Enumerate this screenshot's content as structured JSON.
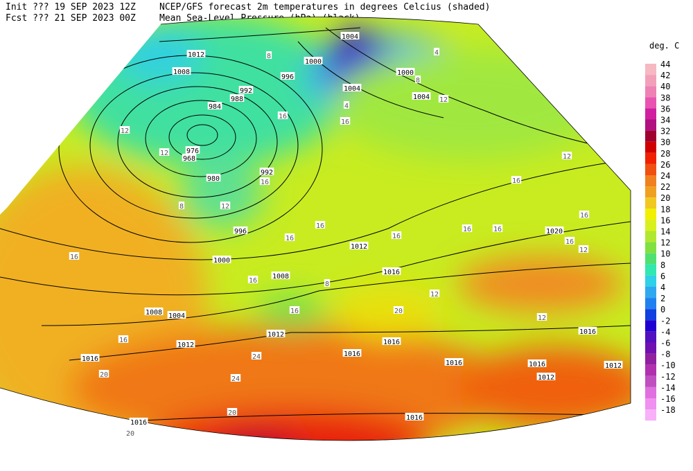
{
  "header": {
    "init": "Init  ??? 19 SEP 2023 12Z",
    "fcst": "Fcst ??? 21 SEP 2023 00Z",
    "title": "NCEP/GFS forecast 2m temperatures in degrees Celcius (shaded)",
    "subtitle": "Mean Sea-Level Pressure (hPa) (black)."
  },
  "legend": {
    "title": "deg. C",
    "ticks": [
      {
        "value": 44,
        "color": "#f6b8c2"
      },
      {
        "value": 42,
        "color": "#f2a0ba"
      },
      {
        "value": 40,
        "color": "#ee82b4"
      },
      {
        "value": 38,
        "color": "#e854b0"
      },
      {
        "value": 36,
        "color": "#d020a0"
      },
      {
        "value": 34,
        "color": "#b01080"
      },
      {
        "value": 32,
        "color": "#a00030"
      },
      {
        "value": 30,
        "color": "#d00000"
      },
      {
        "value": 28,
        "color": "#f02000"
      },
      {
        "value": 26,
        "color": "#f05010"
      },
      {
        "value": 24,
        "color": "#f08020"
      },
      {
        "value": 22,
        "color": "#f0a020"
      },
      {
        "value": 20,
        "color": "#f0c820"
      },
      {
        "value": 18,
        "color": "#f0f000"
      },
      {
        "value": 16,
        "color": "#d8f020"
      },
      {
        "value": 14,
        "color": "#b0e830"
      },
      {
        "value": 12,
        "color": "#80e040"
      },
      {
        "value": 10,
        "color": "#50e070"
      },
      {
        "value": 8,
        "color": "#30e8b0"
      },
      {
        "value": 6,
        "color": "#30d0e8"
      },
      {
        "value": 4,
        "color": "#30a8f0"
      },
      {
        "value": 2,
        "color": "#2080f0"
      },
      {
        "value": 0,
        "color": "#1040e0"
      },
      {
        "value": -2,
        "color": "#2000d0"
      },
      {
        "value": -4,
        "color": "#5010c0"
      },
      {
        "value": -6,
        "color": "#7010b0"
      },
      {
        "value": -8,
        "color": "#9020a0"
      },
      {
        "value": -10,
        "color": "#b030b0"
      },
      {
        "value": -12,
        "color": "#c050c0"
      },
      {
        "value": -14,
        "color": "#e070e0"
      },
      {
        "value": -16,
        "color": "#f090f0"
      },
      {
        "value": -18,
        "color": "#f8b0f8"
      }
    ]
  },
  "map": {
    "pressure_labels": [
      1004,
      1012,
      1008,
      1000,
      996,
      992,
      988,
      984,
      976,
      968,
      980,
      992,
      996,
      1000,
      1008,
      1012,
      1016,
      1020,
      1000,
      1004,
      1004,
      1008,
      1004,
      1012,
      1016,
      1012,
      1016,
      1016,
      1016,
      1016,
      1012,
      1016,
      1012,
      1016,
      1016
    ],
    "temperature_labels": [
      8,
      4,
      8,
      12,
      12,
      12,
      16,
      4,
      16,
      16,
      8,
      12,
      16,
      16,
      16,
      16,
      16,
      16,
      16,
      12,
      16,
      16,
      12,
      12,
      16,
      16,
      20,
      24,
      24,
      20,
      16,
      12,
      20,
      20,
      8
    ]
  }
}
